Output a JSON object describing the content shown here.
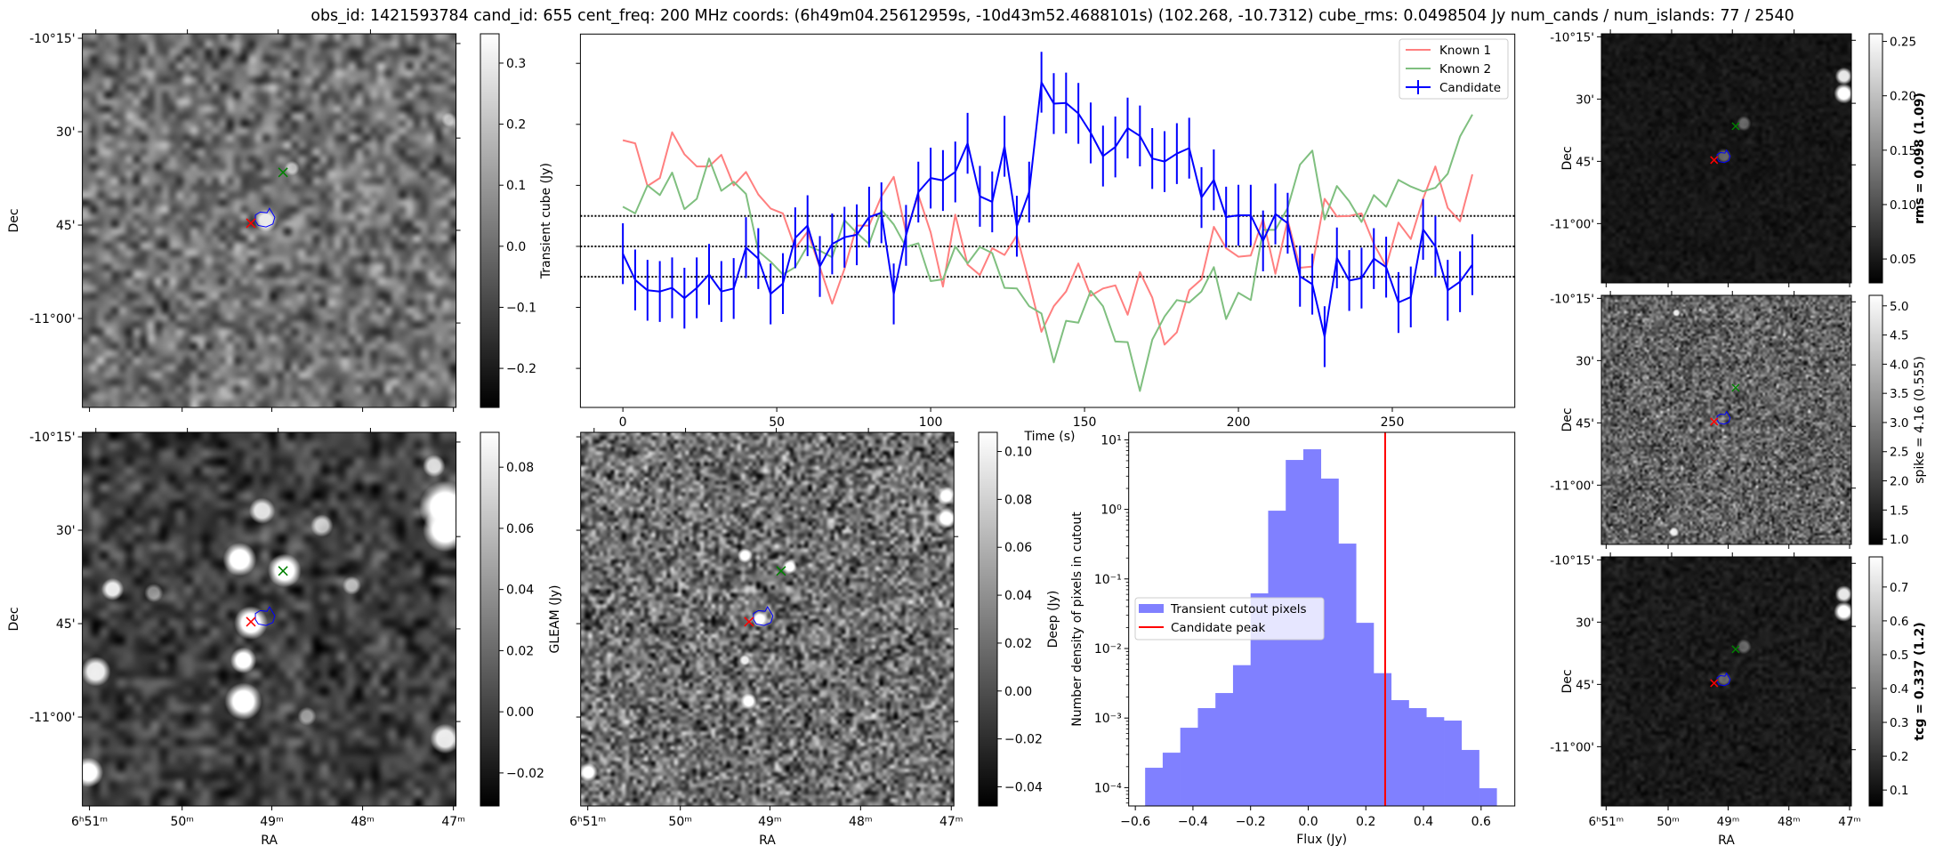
{
  "title": "obs_id: 1421593784 cand_id: 655 cent_freq: 200 MHz coords: (6h49m04.25612959s, -10d43m52.4688101s) (102.268, -10.7312) cube_rms: 0.0498504 Jy num_cands / num_islands: 77 / 2540",
  "wcs": {
    "xlabel": "RA",
    "ylabel": "Dec",
    "dec_ticks": [
      "-10°15'",
      "30'",
      "45'",
      "-11°00'"
    ],
    "ra_ticks": [
      "6ʰ51ᵐ",
      "50ᵐ",
      "49ᵐ",
      "48ᵐ",
      "47ᵐ"
    ]
  },
  "panels": {
    "transient": {
      "colorbar_label": "Transient cube (Jy)",
      "range": [
        -0.264,
        0.348
      ],
      "ticks": [
        {
          "value": 0.3,
          "label": "0.3"
        },
        {
          "value": 0.2,
          "label": "0.2"
        },
        {
          "value": 0.1,
          "label": "0.1"
        },
        {
          "value": 0.0,
          "label": "0.0"
        },
        {
          "value": -0.1,
          "label": "−0.1"
        },
        {
          "value": -0.2,
          "label": "−0.2"
        }
      ]
    },
    "gleam": {
      "colorbar_label": "GLEAM (Jy)",
      "range": [
        -0.0308,
        0.0914
      ],
      "ticks": [
        {
          "value": 0.08,
          "label": "0.08"
        },
        {
          "value": 0.06,
          "label": "0.06"
        },
        {
          "value": 0.04,
          "label": "0.04"
        },
        {
          "value": 0.02,
          "label": "0.02"
        },
        {
          "value": 0.0,
          "label": "0.00"
        },
        {
          "value": -0.02,
          "label": "−0.02"
        }
      ]
    },
    "deep": {
      "colorbar_label": "Deep (Jy)",
      "range": [
        -0.048,
        0.108
      ],
      "ticks": [
        {
          "value": 0.1,
          "label": "0.10"
        },
        {
          "value": 0.08,
          "label": "0.08"
        },
        {
          "value": 0.06,
          "label": "0.06"
        },
        {
          "value": 0.04,
          "label": "0.04"
        },
        {
          "value": 0.02,
          "label": "0.02"
        },
        {
          "value": 0.0,
          "label": "0.00"
        },
        {
          "value": -0.02,
          "label": "−0.02"
        },
        {
          "value": -0.04,
          "label": "−0.04"
        }
      ]
    },
    "rms": {
      "colorbar_label": "rms = 0.098 (1.09)",
      "range": [
        0.028,
        0.257
      ],
      "ticks": [
        {
          "value": 0.25,
          "label": "0.25"
        },
        {
          "value": 0.2,
          "label": "0.20"
        },
        {
          "value": 0.15,
          "label": "0.15"
        },
        {
          "value": 0.1,
          "label": "0.10"
        },
        {
          "value": 0.05,
          "label": "0.05"
        }
      ]
    },
    "spike": {
      "colorbar_label": "spike = 4.16 (0.555)",
      "range": [
        0.91,
        5.18
      ],
      "ticks": [
        {
          "value": 5.0,
          "label": "5.0"
        },
        {
          "value": 4.5,
          "label": "4.5"
        },
        {
          "value": 4.0,
          "label": "4.0"
        },
        {
          "value": 3.5,
          "label": "3.5"
        },
        {
          "value": 3.0,
          "label": "3.0"
        },
        {
          "value": 2.5,
          "label": "2.5"
        },
        {
          "value": 2.0,
          "label": "2.0"
        },
        {
          "value": 1.5,
          "label": "1.5"
        },
        {
          "value": 1.0,
          "label": "1.0"
        }
      ]
    },
    "tcg": {
      "colorbar_label": "tcg = 0.337 (1.2)",
      "range": [
        0.053,
        0.789
      ],
      "ticks": [
        {
          "value": 0.7,
          "label": "0.7"
        },
        {
          "value": 0.6,
          "label": "0.6"
        },
        {
          "value": 0.5,
          "label": "0.5"
        },
        {
          "value": 0.4,
          "label": "0.4"
        },
        {
          "value": 0.3,
          "label": "0.3"
        },
        {
          "value": 0.2,
          "label": "0.2"
        },
        {
          "value": 0.1,
          "label": "0.1"
        }
      ]
    }
  },
  "colors": {
    "known1": "#ff7f7f",
    "known2": "#7fbf7f",
    "candidate": "#0000ff",
    "hist": "#8080ff",
    "peak": "#ff0000",
    "marker_red": "#ff0000",
    "marker_green": "#008000",
    "contour": "#0000ff"
  },
  "chart_data": [
    {
      "type": "line",
      "title": "",
      "xlabel": "Time (s)",
      "ylabel": "Transient cube (Jy)",
      "xlim": [
        -13.8,
        289.8
      ],
      "ylim": [
        -0.264,
        0.348
      ],
      "xticks": [
        {
          "value": 0,
          "label": "0"
        },
        {
          "value": 50,
          "label": "50"
        },
        {
          "value": 100,
          "label": "100"
        },
        {
          "value": 150,
          "label": "150"
        },
        {
          "value": 200,
          "label": "200"
        },
        {
          "value": 250,
          "label": "250"
        }
      ],
      "yticks": [
        0.3,
        0.2,
        0.1,
        0.0,
        -0.1,
        -0.2
      ],
      "hlines": [
        0.0498504,
        0.0,
        -0.0498504
      ],
      "legend_position": "top-right",
      "x": [
        0,
        4,
        8,
        12,
        16,
        20,
        24,
        28,
        32,
        36,
        40,
        44,
        48,
        52,
        56,
        60,
        64,
        68,
        72,
        76,
        80,
        84,
        88,
        92,
        96,
        100,
        104,
        108,
        112,
        116,
        120,
        124,
        128,
        132,
        136,
        140,
        144,
        148,
        152,
        156,
        160,
        164,
        168,
        172,
        176,
        180,
        184,
        188,
        192,
        196,
        200,
        204,
        208,
        212,
        216,
        220,
        224,
        228,
        232,
        236,
        240,
        244,
        248,
        252,
        256,
        260,
        264,
        268,
        272,
        276
      ],
      "series": [
        {
          "name": "Known 1",
          "values": [
            0.174,
            0.169,
            0.099,
            0.112,
            0.187,
            0.151,
            0.131,
            0.131,
            0.15,
            0.1,
            0.122,
            0.085,
            0.062,
            0.054,
            -0.003,
            0.024,
            -0.034,
            -0.094,
            -0.037,
            0.034,
            0.034,
            0.082,
            0.114,
            0.023,
            0.084,
            0.023,
            -0.066,
            0.052,
            -0.03,
            -0.047,
            -0.003,
            -0.014,
            0.018,
            -0.059,
            -0.14,
            -0.098,
            -0.074,
            -0.028,
            -0.081,
            -0.069,
            -0.064,
            -0.112,
            -0.042,
            -0.084,
            -0.161,
            -0.141,
            -0.072,
            -0.054,
            0.032,
            -0.003,
            -0.017,
            -0.015,
            0.045,
            -0.045,
            0.043,
            -0.035,
            -0.033,
            0.078,
            0.049,
            0.05,
            0.054,
            0.004,
            -0.033,
            0.039,
            0.012,
            0.078,
            0.131,
            0.063,
            0.041,
            0.118
          ]
        },
        {
          "name": "Known 2",
          "values": [
            0.065,
            0.054,
            0.1,
            0.084,
            0.121,
            0.061,
            0.078,
            0.144,
            0.091,
            0.106,
            0.086,
            -0.008,
            -0.025,
            -0.046,
            -0.034,
            0.001,
            -0.007,
            -0.018,
            0.043,
            0.022,
            0.004,
            0.06,
            0.036,
            -0.001,
            0.005,
            -0.057,
            -0.054,
            0.0,
            -0.028,
            -0.001,
            -0.011,
            -0.068,
            -0.069,
            -0.098,
            -0.11,
            -0.19,
            -0.122,
            -0.125,
            -0.073,
            -0.098,
            -0.156,
            -0.157,
            -0.237,
            -0.153,
            -0.115,
            -0.088,
            -0.092,
            -0.074,
            -0.034,
            -0.119,
            -0.076,
            -0.088,
            0.027,
            0.027,
            0.063,
            0.134,
            0.157,
            0.044,
            0.099,
            0.074,
            0.04,
            0.084,
            0.065,
            0.109,
            0.098,
            0.09,
            0.096,
            0.119,
            0.18,
            0.216
          ]
        },
        {
          "name": "Candidate",
          "yerr": 0.0498504,
          "values": [
            -0.012,
            -0.055,
            -0.072,
            -0.074,
            -0.068,
            -0.085,
            -0.068,
            -0.046,
            -0.074,
            -0.069,
            -0.002,
            -0.02,
            -0.078,
            -0.061,
            0.014,
            0.034,
            -0.033,
            0.004,
            0.015,
            0.019,
            0.048,
            0.055,
            -0.078,
            0.018,
            0.089,
            0.112,
            0.108,
            0.122,
            0.169,
            0.082,
            0.073,
            0.164,
            0.033,
            0.089,
            0.269,
            0.234,
            0.235,
            0.218,
            0.186,
            0.148,
            0.163,
            0.194,
            0.181,
            0.144,
            0.139,
            0.152,
            0.161,
            0.08,
            0.109,
            0.048,
            0.051,
            0.051,
            0.009,
            0.053,
            0.038,
            -0.049,
            -0.062,
            -0.148,
            -0.019,
            -0.056,
            -0.052,
            -0.02,
            -0.034,
            -0.092,
            -0.083,
            0.028,
            0.0,
            -0.072,
            -0.058,
            -0.03
          ]
        }
      ]
    },
    {
      "type": "bar",
      "title": "",
      "xlabel": "Flux (Jy)",
      "ylabel": "Number density of pixels in cutout",
      "yscale": "log",
      "xlim": [
        -0.623,
        0.717
      ],
      "ylim": [
        5.45e-05,
        12.8
      ],
      "xticks": [
        {
          "value": -0.6,
          "label": "−0.6"
        },
        {
          "value": -0.4,
          "label": "−0.4"
        },
        {
          "value": -0.2,
          "label": "−0.2"
        },
        {
          "value": 0.0,
          "label": "0.0"
        },
        {
          "value": 0.2,
          "label": "0.2"
        },
        {
          "value": 0.4,
          "label": "0.4"
        },
        {
          "value": 0.6,
          "label": "0.6"
        }
      ],
      "yticks": [
        {
          "value": 10,
          "label": "10¹"
        },
        {
          "value": 1,
          "label": "10⁰"
        },
        {
          "value": 0.1,
          "label": "10⁻¹"
        },
        {
          "value": 0.01,
          "label": "10⁻²"
        },
        {
          "value": 0.001,
          "label": "10⁻³"
        },
        {
          "value": 0.0001,
          "label": "10⁻⁴"
        }
      ],
      "bin_edges": [
        -0.566,
        -0.505,
        -0.444,
        -0.383,
        -0.322,
        -0.261,
        -0.2,
        -0.139,
        -0.078,
        -0.017,
        0.044,
        0.105,
        0.166,
        0.227,
        0.288,
        0.349,
        0.41,
        0.471,
        0.532,
        0.593,
        0.654
      ],
      "values": [
        0.000193,
        0.000318,
        0.000726,
        0.00139,
        0.00229,
        0.00576,
        0.062,
        0.957,
        5.13,
        7.31,
        2.77,
        0.322,
        0.0234,
        0.00442,
        0.00181,
        0.00139,
        0.00103,
        0.00092,
        0.000348,
        9.8e-05
      ],
      "candidate_peak": 0.267,
      "legend_position": "center-left",
      "legend": [
        "Transient cutout pixels",
        "Candidate peak"
      ]
    }
  ]
}
